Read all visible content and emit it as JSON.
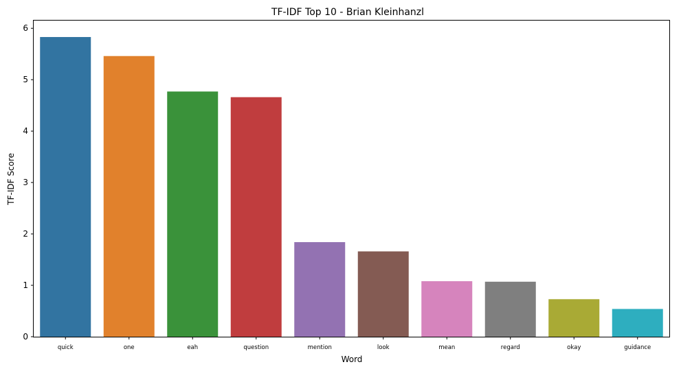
{
  "chart_data": {
    "type": "bar",
    "title": "TF-IDF Top 10 - Brian Kleinhanzl",
    "xlabel": "Word",
    "ylabel": "TF-IDF Score",
    "categories": [
      "quick",
      "one",
      "eah",
      "question",
      "mention",
      "look",
      "mean",
      "regard",
      "okay",
      "guidance"
    ],
    "values": [
      5.83,
      5.46,
      4.77,
      4.66,
      1.84,
      1.66,
      1.08,
      1.07,
      0.73,
      0.54
    ],
    "colors": [
      "#3274a1",
      "#e1812c",
      "#3a923a",
      "#c03d3e",
      "#9372b2",
      "#845b53",
      "#d684bd",
      "#7f7f7f",
      "#a9aa35",
      "#2eaebf"
    ],
    "ylim": [
      0,
      6.15
    ],
    "yticks": [
      0,
      1,
      2,
      3,
      4,
      5,
      6
    ],
    "grid": false,
    "legend": "none"
  }
}
